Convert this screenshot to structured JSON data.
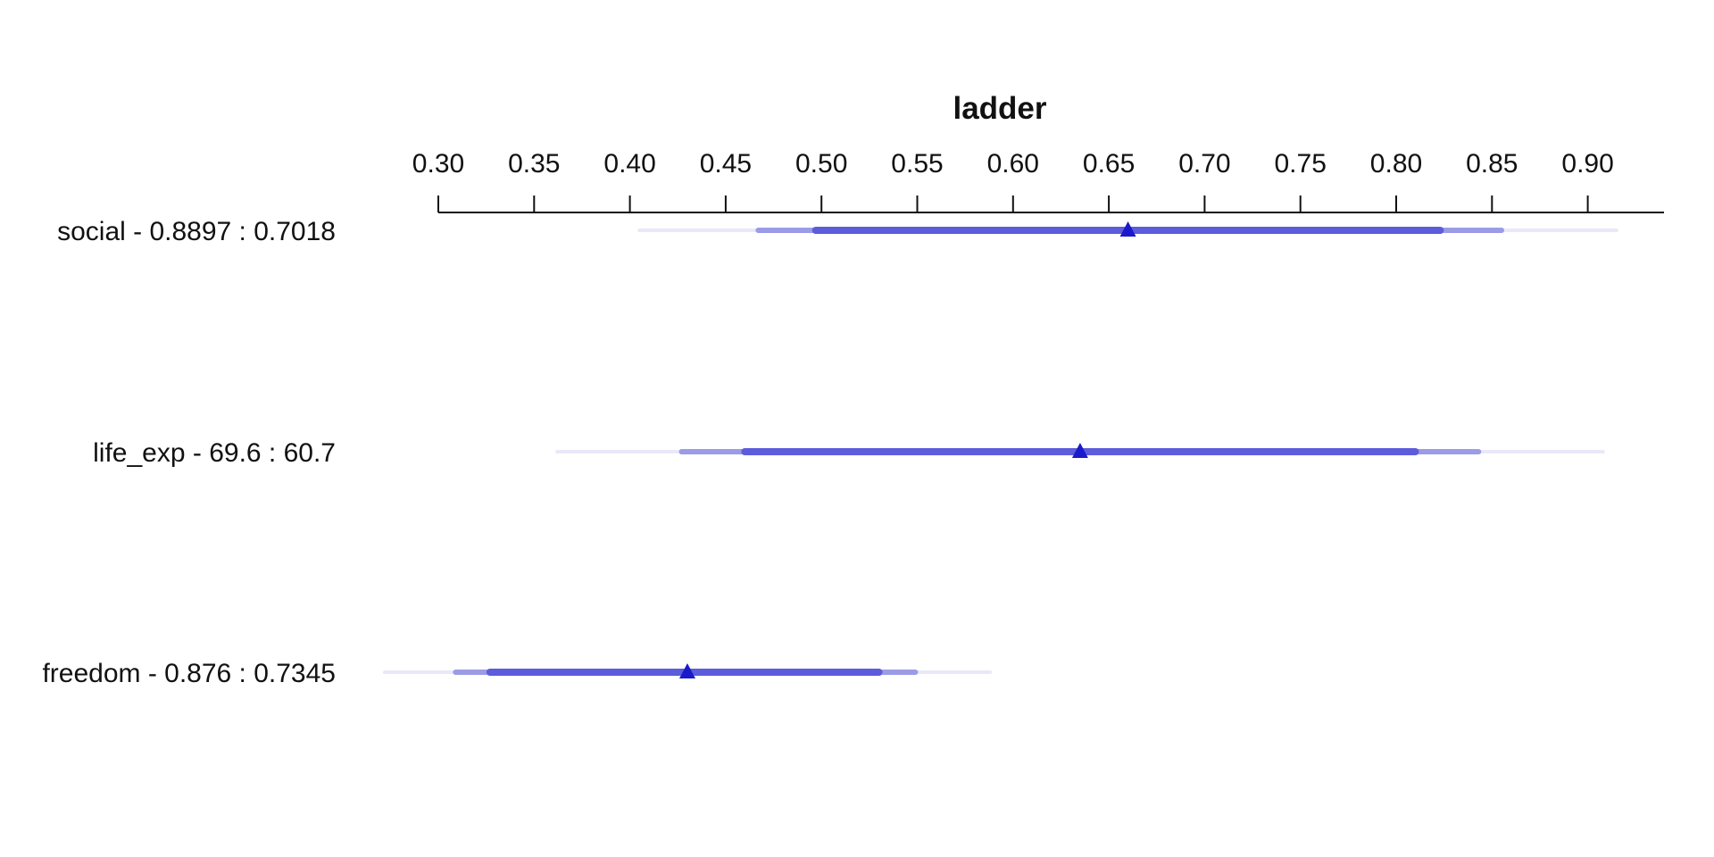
{
  "chart_data": {
    "type": "interval",
    "title": "ladder",
    "xlabel": "",
    "ylabel": "",
    "x_axis_position": "top",
    "xlim": [
      0.3,
      0.94
    ],
    "ticks": [
      0.3,
      0.35,
      0.4,
      0.45,
      0.5,
      0.55,
      0.6,
      0.65,
      0.7,
      0.75,
      0.8,
      0.85,
      0.9
    ],
    "tick_labels": [
      "0.30",
      "0.35",
      "0.40",
      "0.45",
      "0.50",
      "0.55",
      "0.60",
      "0.65",
      "0.70",
      "0.75",
      "0.80",
      "0.85",
      "0.90"
    ],
    "grid": false,
    "legend": "none",
    "rows": [
      {
        "label": "social - 0.8897 : 0.7018",
        "point": 0.66,
        "outer": [
          0.405,
          0.915
        ],
        "middle": [
          0.467,
          0.855
        ],
        "inner": [
          0.497,
          0.823
        ]
      },
      {
        "label": "life_exp - 69.6 : 60.7",
        "point": 0.635,
        "outer": [
          0.362,
          0.908
        ],
        "middle": [
          0.427,
          0.843
        ],
        "inner": [
          0.46,
          0.81
        ]
      },
      {
        "label": "freedom - 0.876 : 0.7345",
        "point": 0.43,
        "outer": [
          0.272,
          0.588
        ],
        "middle": [
          0.309,
          0.549
        ],
        "inner": [
          0.327,
          0.53
        ]
      }
    ],
    "colors": {
      "outer": "#e8e8f8",
      "middle": "#9b9be6",
      "inner": "#5c5cdc",
      "point": "#1a1acc",
      "axis": "#111111",
      "text": "#111111"
    }
  }
}
